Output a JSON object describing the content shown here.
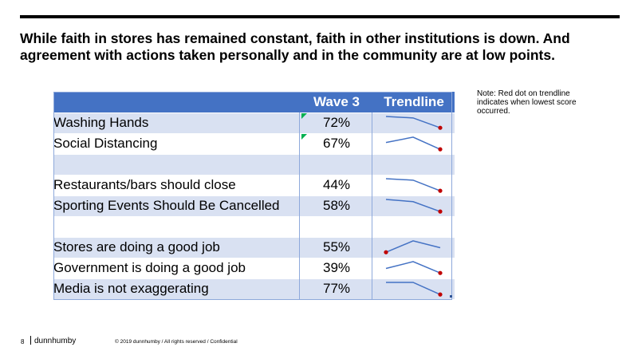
{
  "slide": {
    "title": "While faith in stores has remained constant, faith in other institutions is down. And agreement with actions taken personally and in the community are at low points.",
    "note": "Note:  Red dot on trendline indicates when lowest score occurred."
  },
  "table": {
    "headers": {
      "label": "",
      "wave3": "Wave 3",
      "trend": "Trendline"
    },
    "rows": [
      {
        "label": "Washing Hands",
        "value": "72%",
        "flag": true,
        "trend": [
          0.95,
          0.85,
          0.2
        ]
      },
      {
        "label": "Social Distancing",
        "value": "67%",
        "flag": true,
        "trend": [
          0.6,
          0.95,
          0.15
        ]
      },
      {
        "spacer": true
      },
      {
        "label": "Restaurants/bars should close",
        "value": "44%",
        "flag": false,
        "trend": [
          0.95,
          0.85,
          0.15
        ]
      },
      {
        "label": "Sporting Events Should Be Cancelled",
        "value": "58%",
        "flag": false,
        "trend": [
          0.95,
          0.8,
          0.15
        ]
      },
      {
        "spacer": true
      },
      {
        "label": "Stores are doing a good job",
        "value": "55%",
        "flag": false,
        "trend": [
          0.2,
          0.95,
          0.5
        ],
        "min_index": 0
      },
      {
        "label": "Government is doing a good job",
        "value": "39%",
        "flag": false,
        "trend": [
          0.5,
          0.95,
          0.2
        ]
      },
      {
        "label": "Media is not exaggerating",
        "value": "77%",
        "flag": false,
        "trend": [
          0.95,
          0.95,
          0.15
        ]
      }
    ],
    "colors": {
      "header": "#4472c4",
      "band": "#d9e1f2",
      "spark_line": "#4472c4",
      "low_dot": "#c00000",
      "flag": "#00b050"
    }
  },
  "footer": {
    "page_number": "8",
    "brand": "dunnhumby",
    "copyright": "© 2019 dunnhumby  / All rights reserved  / Confidential"
  }
}
